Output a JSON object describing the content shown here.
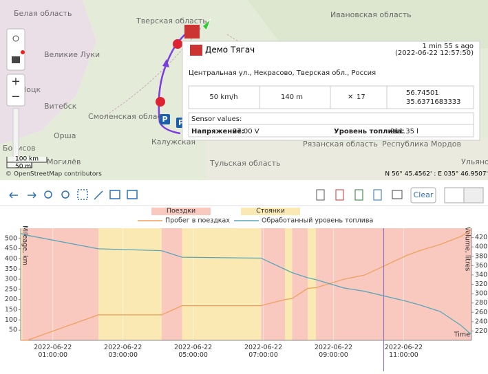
{
  "map": {
    "labels": [
      "Тверская область",
      "Ивановская область",
      "Великие Луки",
      "Витебск",
      "Орша",
      "Смоленская облас",
      "Калужская",
      "Тульская область",
      "Рязанская область",
      "Ульяно",
      "Борисов",
      "Могилёв",
      "Нoцк",
      "Республика Мордов",
      "Белая область"
    ],
    "scale_km": "100 km",
    "scale_mi": "50 mi",
    "attribution": "© OpenStreetMap contributors",
    "coordinates": "N 56° 45.4562' : E 035° 46.9507'"
  },
  "popup": {
    "title": "Демо Тягач",
    "ago": "1 min 55 s ago",
    "timestamp": "(2022-06-22 12:57:50)",
    "address": "Центральная ул., Некрасово, Тверская обл., Россия",
    "speed": "50 km/h",
    "altitude": "140 m",
    "satellites": "17",
    "lat": "56.74501",
    "lon": "35.6371683333",
    "sensors_title": "Sensor values:",
    "sensors": [
      {
        "name": "Напряжение:",
        "value": "27.00 V"
      },
      {
        "name": "Уровень топлива:",
        "value": "211.35 l"
      }
    ]
  },
  "toolbar": {
    "clear": "Clear"
  },
  "chart_data": {
    "type": "line",
    "x": [
      "2022-06-22 00:05:00",
      "2022-06-22 00:16:00",
      "2022-06-22 02:18:00",
      "2022-06-22 04:06:00",
      "2022-06-22 04:41:00",
      "2022-06-22 06:56:00",
      "2022-06-22 07:37:00",
      "2022-06-22 07:49:00",
      "2022-06-22 08:16:00",
      "2022-06-22 08:30:00",
      "2022-06-22 09:18:00",
      "2022-06-22 09:53:00",
      "2022-06-22 11:04:00",
      "2022-06-22 11:27:00",
      "2022-06-22 12:02:00",
      "2022-06-22 12:38:00",
      "2022-06-22 12:55:00"
    ],
    "series": [
      {
        "name": "Пробег в поездках",
        "color": "#f0a060",
        "values": [
          0,
          0,
          125,
          125,
          170,
          170,
          200,
          205,
          255,
          258,
          300,
          320,
          415,
          440,
          470,
          510,
          540
        ]
      },
      {
        "name": "Обработанный уровень топлива",
        "color": "#5aa6b8",
        "axis": "y2",
        "values": [
          429,
          425,
          396,
          392,
          378,
          376,
          352,
          345,
          334,
          330,
          312,
          305,
          284,
          276,
          262,
          232,
          213
        ]
      }
    ],
    "bands": [
      {
        "name": "Поездки",
        "color": "#f9c9bf",
        "intervals": [
          [
            "2022-06-22 00:08:00",
            "2022-06-22 02:18:00"
          ],
          [
            "2022-06-22 04:06:00",
            "2022-06-22 04:41:00"
          ],
          [
            "2022-06-22 06:56:00",
            "2022-06-22 07:37:00"
          ],
          [
            "2022-06-22 07:49:00",
            "2022-06-22 08:16:00"
          ],
          [
            "2022-06-22 08:30:00",
            "2022-06-22 12:56:00"
          ]
        ]
      },
      {
        "name": "Стоянки",
        "color": "#fbe9b3",
        "intervals": [
          [
            "2022-06-22 00:05:00",
            "2022-06-22 00:08:00"
          ],
          [
            "2022-06-22 02:18:00",
            "2022-06-22 04:06:00"
          ],
          [
            "2022-06-22 04:41:00",
            "2022-06-22 06:56:00"
          ],
          [
            "2022-06-22 07:37:00",
            "2022-06-22 07:49:00"
          ],
          [
            "2022-06-22 08:16:00",
            "2022-06-22 08:30:00"
          ]
        ]
      }
    ],
    "cursor": "2022-06-22 10:26:00",
    "cursor_color": "#7b68c8",
    "ylabel": "Mileage, km",
    "y2label": "Volume, litres",
    "xlabel": "Time",
    "xlim": [
      "2022-06-22 00:05:00",
      "2022-06-22 12:56:00"
    ],
    "xticks": [
      "2022-06-22 01:00:00",
      "2022-06-22 03:00:00",
      "2022-06-22 05:00:00",
      "2022-06-22 07:00:00",
      "2022-06-22 09:00:00",
      "2022-06-22 11:00:00"
    ],
    "ylim": [
      0,
      550
    ],
    "yticks": [
      50,
      100,
      150,
      200,
      250,
      300,
      350,
      400,
      450,
      500
    ],
    "y2lim": [
      200,
      440
    ],
    "y2ticks": [
      220,
      240,
      260,
      280,
      300,
      320,
      340,
      360,
      380,
      400,
      420
    ],
    "grid": true
  }
}
